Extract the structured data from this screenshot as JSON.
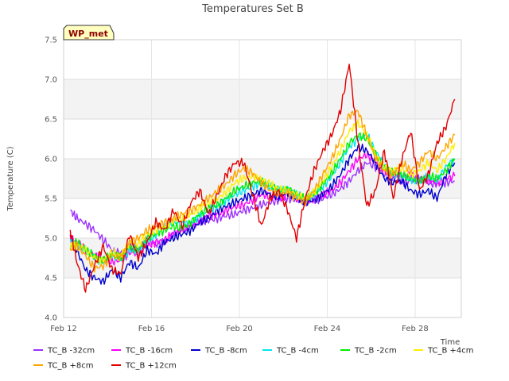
{
  "chart_data": {
    "type": "line",
    "title": "Temperatures Set B",
    "xlabel": "Time",
    "ylabel": "Temperature (C)",
    "badge": "WP_met",
    "xlim": [
      12,
      30.1
    ],
    "ylim": [
      4.0,
      7.5
    ],
    "xticks": [
      12,
      16,
      20,
      24,
      28
    ],
    "xtick_labels": [
      "Feb 12",
      "Feb 16",
      "Feb 20",
      "Feb 24",
      "Feb 28"
    ],
    "yticks": [
      4.0,
      4.5,
      5.0,
      5.5,
      6.0,
      6.5,
      7.0,
      7.5
    ],
    "ytick_labels": [
      "4.0",
      "4.5",
      "5.0",
      "5.5",
      "6.0",
      "6.5",
      "7.0",
      "7.5"
    ],
    "grid": true,
    "legend_position": "bottom",
    "x": [
      12.3,
      12.6,
      13.0,
      13.4,
      13.8,
      14.2,
      14.6,
      15.0,
      15.4,
      15.8,
      16.2,
      16.6,
      17.0,
      17.4,
      17.8,
      18.2,
      18.6,
      19.0,
      19.4,
      19.8,
      20.2,
      20.6,
      21.0,
      21.4,
      21.8,
      22.2,
      22.6,
      23.0,
      23.4,
      23.8,
      24.2,
      24.6,
      25.0,
      25.4,
      25.8,
      26.2,
      26.6,
      27.0,
      27.4,
      27.8,
      28.2,
      28.6,
      29.0,
      29.4,
      29.8
    ],
    "series": [
      {
        "name": "TC_B -32cm",
        "color": "#9b30ff",
        "values": [
          5.35,
          5.25,
          5.18,
          5.1,
          4.98,
          4.85,
          4.8,
          4.9,
          4.85,
          4.98,
          4.92,
          4.95,
          5.05,
          5.1,
          5.15,
          5.2,
          5.22,
          5.25,
          5.28,
          5.3,
          5.35,
          5.38,
          5.42,
          5.45,
          5.48,
          5.5,
          5.48,
          5.45,
          5.48,
          5.5,
          5.55,
          5.62,
          5.72,
          5.85,
          5.95,
          5.9,
          5.8,
          5.75,
          5.7,
          5.72,
          5.75,
          5.7,
          5.68,
          5.7,
          5.72
        ]
      },
      {
        "name": "TC_B -16cm",
        "color": "#ff00ff",
        "values": [
          5.0,
          4.95,
          4.85,
          4.78,
          4.75,
          4.7,
          4.72,
          4.82,
          4.8,
          4.9,
          4.95,
          4.98,
          5.05,
          5.12,
          5.15,
          5.22,
          5.28,
          5.3,
          5.35,
          5.4,
          5.42,
          5.48,
          5.55,
          5.52,
          5.5,
          5.55,
          5.5,
          5.48,
          5.5,
          5.55,
          5.6,
          5.7,
          5.85,
          6.0,
          6.05,
          5.95,
          5.85,
          5.8,
          5.78,
          5.8,
          5.75,
          5.72,
          5.7,
          5.75,
          5.78
        ]
      },
      {
        "name": "TC_B -8cm",
        "color": "#0000cd",
        "values": [
          5.0,
          4.85,
          4.6,
          4.5,
          4.45,
          4.6,
          4.5,
          4.7,
          4.62,
          4.85,
          4.8,
          4.95,
          5.0,
          5.05,
          5.1,
          5.2,
          5.25,
          5.35,
          5.4,
          5.45,
          5.5,
          5.55,
          5.6,
          5.55,
          5.52,
          5.58,
          5.5,
          5.45,
          5.48,
          5.55,
          5.65,
          5.8,
          6.0,
          6.15,
          6.1,
          5.95,
          5.75,
          5.7,
          5.72,
          5.6,
          5.55,
          5.6,
          5.5,
          5.8,
          5.95
        ]
      },
      {
        "name": "TC_B -4cm",
        "color": "#00e5ee",
        "values": [
          4.95,
          4.9,
          4.85,
          4.75,
          4.7,
          4.78,
          4.72,
          4.85,
          4.82,
          4.95,
          5.05,
          5.15,
          5.2,
          5.18,
          5.2,
          5.28,
          5.35,
          5.4,
          5.48,
          5.55,
          5.6,
          5.65,
          5.7,
          5.65,
          5.6,
          5.62,
          5.55,
          5.5,
          5.55,
          5.65,
          5.78,
          5.95,
          6.15,
          6.25,
          6.3,
          6.1,
          5.9,
          5.8,
          5.78,
          5.75,
          5.7,
          5.78,
          5.72,
          5.9,
          6.0
        ]
      },
      {
        "name": "TC_B -2cm",
        "color": "#00ee00",
        "values": [
          4.9,
          4.95,
          4.85,
          4.78,
          4.72,
          4.8,
          4.75,
          4.9,
          4.85,
          5.0,
          5.05,
          5.1,
          5.15,
          5.12,
          5.2,
          5.3,
          5.38,
          5.42,
          5.5,
          5.6,
          5.65,
          5.7,
          5.72,
          5.65,
          5.6,
          5.62,
          5.55,
          5.5,
          5.55,
          5.68,
          5.82,
          6.0,
          6.2,
          6.3,
          6.25,
          6.05,
          5.9,
          5.82,
          5.8,
          5.75,
          5.72,
          5.78,
          5.75,
          5.85,
          6.0
        ]
      },
      {
        "name": "TC_B +4cm",
        "color": "#ffee00",
        "values": [
          4.9,
          4.92,
          4.85,
          4.75,
          4.72,
          4.82,
          4.78,
          4.95,
          4.92,
          5.05,
          5.1,
          5.15,
          5.22,
          5.25,
          5.3,
          5.38,
          5.45,
          5.5,
          5.58,
          5.7,
          5.75,
          5.78,
          5.75,
          5.68,
          5.62,
          5.6,
          5.55,
          5.5,
          5.58,
          5.72,
          5.9,
          6.1,
          6.35,
          6.45,
          6.3,
          6.05,
          5.9,
          5.85,
          5.88,
          5.8,
          5.85,
          5.95,
          5.85,
          6.0,
          6.2
        ]
      },
      {
        "name": "TC_B +8cm",
        "color": "#ffa500",
        "values": [
          4.85,
          4.9,
          4.78,
          4.62,
          4.65,
          4.78,
          4.75,
          4.95,
          5.0,
          5.1,
          5.15,
          5.2,
          5.25,
          5.3,
          5.35,
          5.42,
          5.5,
          5.6,
          5.68,
          5.8,
          5.88,
          5.82,
          5.7,
          5.6,
          5.55,
          5.58,
          5.5,
          5.45,
          5.6,
          5.8,
          6.0,
          6.25,
          6.55,
          6.6,
          6.3,
          6.0,
          5.85,
          5.8,
          5.95,
          5.85,
          5.95,
          6.1,
          6.0,
          6.15,
          6.3
        ]
      },
      {
        "name": "TC_B +12cm",
        "color": "#e00000",
        "values": [
          5.1,
          4.7,
          4.35,
          4.65,
          4.9,
          4.6,
          4.55,
          5.05,
          4.75,
          4.95,
          5.2,
          5.1,
          5.35,
          5.15,
          5.45,
          5.6,
          5.3,
          5.55,
          5.8,
          5.95,
          5.95,
          5.55,
          5.15,
          5.5,
          5.6,
          5.35,
          5.0,
          5.5,
          5.85,
          6.1,
          6.3,
          6.6,
          7.2,
          6.2,
          5.4,
          5.6,
          6.1,
          5.5,
          6.0,
          6.35,
          5.6,
          5.8,
          6.2,
          6.4,
          6.75
        ]
      }
    ]
  }
}
